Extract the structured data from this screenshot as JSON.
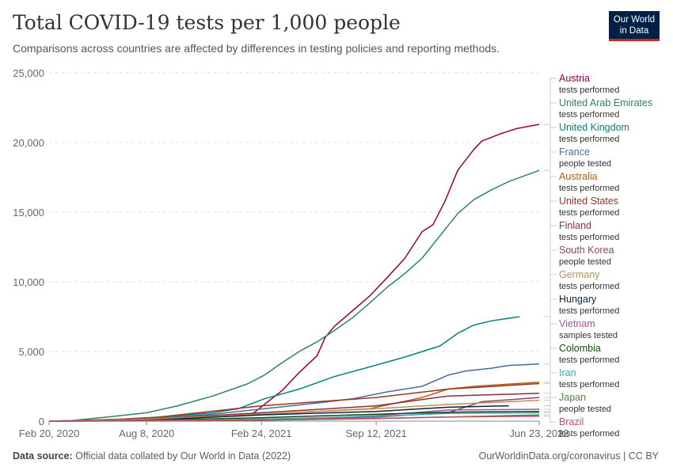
{
  "header": {
    "title": "Total COVID-19 tests per 1,000 people",
    "subtitle": "Comparisons across countries are affected by differences in testing policies and reporting methods."
  },
  "logo": {
    "line1": "Our World",
    "line2": "in Data"
  },
  "footer": {
    "source_label": "Data source:",
    "source_text": "Official data collated by Our World in Data (2022)",
    "right_text": "OurWorldinData.org/coronavirus | CC BY"
  },
  "chart_data": {
    "type": "line",
    "title": "Total COVID-19 tests per 1,000 people",
    "subtitle": "Comparisons across countries are affected by differences in testing policies and reporting methods.",
    "x_ticks": [
      "Feb 20, 2020",
      "Aug 8, 2020",
      "Feb 24, 2021",
      "Sep 12, 2021",
      "Jun 23, 2022"
    ],
    "xlim": [
      "2020-02-20",
      "2022-06-23"
    ],
    "ylim": [
      0,
      25000
    ],
    "y_ticks": [
      0,
      5000,
      10000,
      15000,
      20000,
      25000
    ],
    "y_tick_labels": [
      "0",
      "5,000",
      "10,000",
      "15,000",
      "20,000",
      "25,000"
    ],
    "grid": "horizontal dashed",
    "legend": "right, labels at line ends",
    "series": [
      {
        "name": "Austria",
        "sub": "tests performed",
        "color": "#970046",
        "points": [
          [
            "2021-02-08",
            500
          ],
          [
            "2021-03-01",
            1200
          ],
          [
            "2021-04-01",
            2200
          ],
          [
            "2021-05-01",
            3500
          ],
          [
            "2021-06-01",
            4700
          ],
          [
            "2021-06-15",
            6000
          ],
          [
            "2021-07-01",
            6800
          ],
          [
            "2021-08-01",
            7900
          ],
          [
            "2021-09-01",
            9000
          ],
          [
            "2021-10-01",
            10300
          ],
          [
            "2021-11-01",
            11700
          ],
          [
            "2021-12-01",
            13600
          ],
          [
            "2021-12-20",
            14100
          ],
          [
            "2022-01-10",
            15800
          ],
          [
            "2022-02-01",
            18000
          ],
          [
            "2022-03-01",
            19500
          ],
          [
            "2022-03-15",
            20100
          ],
          [
            "2022-04-15",
            20600
          ],
          [
            "2022-05-15",
            21000
          ],
          [
            "2022-06-23",
            21300
          ]
        ]
      },
      {
        "name": "United Arab Emirates",
        "sub": "tests performed",
        "color": "#2c8465",
        "points": [
          [
            "2020-02-20",
            0
          ],
          [
            "2020-04-01",
            50
          ],
          [
            "2020-06-01",
            300
          ],
          [
            "2020-08-08",
            600
          ],
          [
            "2020-10-01",
            1100
          ],
          [
            "2020-12-01",
            1800
          ],
          [
            "2021-02-01",
            2700
          ],
          [
            "2021-03-01",
            3300
          ],
          [
            "2021-04-01",
            4200
          ],
          [
            "2021-05-01",
            5000
          ],
          [
            "2021-06-01",
            5700
          ],
          [
            "2021-07-01",
            6500
          ],
          [
            "2021-08-01",
            7400
          ],
          [
            "2021-09-01",
            8500
          ],
          [
            "2021-10-01",
            9600
          ],
          [
            "2021-11-01",
            10600
          ],
          [
            "2021-12-01",
            11700
          ],
          [
            "2022-01-01",
            13300
          ],
          [
            "2022-02-01",
            14900
          ],
          [
            "2022-03-01",
            15900
          ],
          [
            "2022-04-01",
            16600
          ],
          [
            "2022-05-01",
            17200
          ],
          [
            "2022-06-23",
            18000
          ]
        ]
      },
      {
        "name": "United Kingdom",
        "sub": "tests performed",
        "color": "#00847e",
        "points": [
          [
            "2020-03-01",
            0
          ],
          [
            "2020-06-01",
            100
          ],
          [
            "2020-09-01",
            300
          ],
          [
            "2020-12-01",
            600
          ],
          [
            "2021-01-15",
            900
          ],
          [
            "2021-03-01",
            1600
          ],
          [
            "2021-05-01",
            2300
          ],
          [
            "2021-07-01",
            3200
          ],
          [
            "2021-09-01",
            3900
          ],
          [
            "2021-11-01",
            4600
          ],
          [
            "2022-01-01",
            5400
          ],
          [
            "2022-02-01",
            6300
          ],
          [
            "2022-03-01",
            6900
          ],
          [
            "2022-04-01",
            7200
          ],
          [
            "2022-05-20",
            7500
          ]
        ]
      },
      {
        "name": "France",
        "sub": "people tested",
        "color": "#4c6a9c",
        "points": [
          [
            "2020-05-01",
            0
          ],
          [
            "2020-08-08",
            150
          ],
          [
            "2020-12-01",
            500
          ],
          [
            "2021-03-01",
            900
          ],
          [
            "2021-06-01",
            1300
          ],
          [
            "2021-08-01",
            1600
          ],
          [
            "2021-10-01",
            2100
          ],
          [
            "2021-12-01",
            2500
          ],
          [
            "2022-01-15",
            3300
          ],
          [
            "2022-02-15",
            3600
          ],
          [
            "2022-04-01",
            3800
          ],
          [
            "2022-05-01",
            4000
          ],
          [
            "2022-06-23",
            4100
          ]
        ]
      },
      {
        "name": "Australia",
        "sub": "tests performed",
        "color": "#b16214",
        "points": [
          [
            "2020-03-01",
            0
          ],
          [
            "2020-08-08",
            150
          ],
          [
            "2021-02-24",
            500
          ],
          [
            "2021-09-01",
            900
          ],
          [
            "2021-12-01",
            1700
          ],
          [
            "2022-01-15",
            2300
          ],
          [
            "2022-03-01",
            2500
          ],
          [
            "2022-06-23",
            2800
          ]
        ]
      },
      {
        "name": "United States",
        "sub": "tests performed",
        "color": "#9a3324",
        "points": [
          [
            "2020-03-01",
            0
          ],
          [
            "2020-08-08",
            200
          ],
          [
            "2021-02-24",
            1100
          ],
          [
            "2021-09-12",
            1700
          ],
          [
            "2022-01-15",
            2300
          ],
          [
            "2022-06-23",
            2700
          ]
        ]
      },
      {
        "name": "Finland",
        "sub": "tests performed",
        "color": "#883039",
        "points": [
          [
            "2020-03-01",
            0
          ],
          [
            "2020-08-08",
            150
          ],
          [
            "2021-02-24",
            600
          ],
          [
            "2021-09-12",
            1100
          ],
          [
            "2022-01-15",
            1800
          ],
          [
            "2022-06-23",
            2000
          ]
        ]
      },
      {
        "name": "South Korea",
        "sub": "people tested",
        "color": "#8c4569",
        "points": [
          [
            "2020-02-20",
            0
          ],
          [
            "2020-08-08",
            40
          ],
          [
            "2021-02-24",
            130
          ],
          [
            "2021-09-12",
            300
          ],
          [
            "2022-01-15",
            600
          ],
          [
            "2022-03-15",
            1400
          ],
          [
            "2022-06-23",
            1700
          ]
        ]
      },
      {
        "name": "Germany",
        "sub": "tests performed",
        "color": "#bc8e5a",
        "points": [
          [
            "2020-03-01",
            0
          ],
          [
            "2020-08-08",
            150
          ],
          [
            "2021-02-24",
            500
          ],
          [
            "2021-09-12",
            900
          ],
          [
            "2022-01-15",
            1200
          ],
          [
            "2022-06-23",
            1500
          ]
        ]
      },
      {
        "name": "Hungary",
        "sub": "tests performed",
        "color": "#0d233a",
        "points": [
          [
            "2020-03-01",
            0
          ],
          [
            "2020-08-08",
            60
          ],
          [
            "2021-02-24",
            450
          ],
          [
            "2021-09-12",
            700
          ],
          [
            "2022-01-15",
            1000
          ],
          [
            "2022-05-01",
            1100
          ]
        ]
      },
      {
        "name": "Vietnam",
        "sub": "samples tested",
        "color": "#a2559c",
        "points": [
          [
            "2020-03-01",
            0
          ],
          [
            "2020-08-08",
            20
          ],
          [
            "2021-02-24",
            40
          ],
          [
            "2021-09-12",
            400
          ],
          [
            "2022-01-15",
            800
          ],
          [
            "2022-06-23",
            850
          ]
        ]
      },
      {
        "name": "Colombia",
        "sub": "tests performed",
        "color": "#18470f",
        "points": [
          [
            "2020-03-01",
            0
          ],
          [
            "2020-08-08",
            60
          ],
          [
            "2021-02-24",
            250
          ],
          [
            "2021-09-12",
            500
          ],
          [
            "2022-01-15",
            650
          ],
          [
            "2022-06-23",
            700
          ]
        ]
      },
      {
        "name": "Iran",
        "sub": "tests performed",
        "color": "#38aaba",
        "points": [
          [
            "2020-03-01",
            0
          ],
          [
            "2020-08-08",
            40
          ],
          [
            "2021-02-24",
            150
          ],
          [
            "2021-09-12",
            350
          ],
          [
            "2022-01-15",
            550
          ],
          [
            "2022-06-23",
            600
          ]
        ]
      },
      {
        "name": "Japan",
        "sub": "people tested",
        "color": "#578145",
        "points": [
          [
            "2020-03-01",
            0
          ],
          [
            "2020-08-08",
            10
          ],
          [
            "2021-02-24",
            70
          ],
          [
            "2021-09-12",
            180
          ],
          [
            "2022-01-15",
            300
          ],
          [
            "2022-06-23",
            450
          ]
        ]
      },
      {
        "name": "Brazil",
        "sub": "tests performed",
        "color": "#c15065",
        "points": [
          [
            "2020-03-01",
            0
          ],
          [
            "2020-08-08",
            30
          ],
          [
            "2021-02-24",
            100
          ],
          [
            "2021-09-12",
            200
          ],
          [
            "2022-01-15",
            300
          ],
          [
            "2022-06-23",
            350
          ]
        ]
      }
    ]
  }
}
